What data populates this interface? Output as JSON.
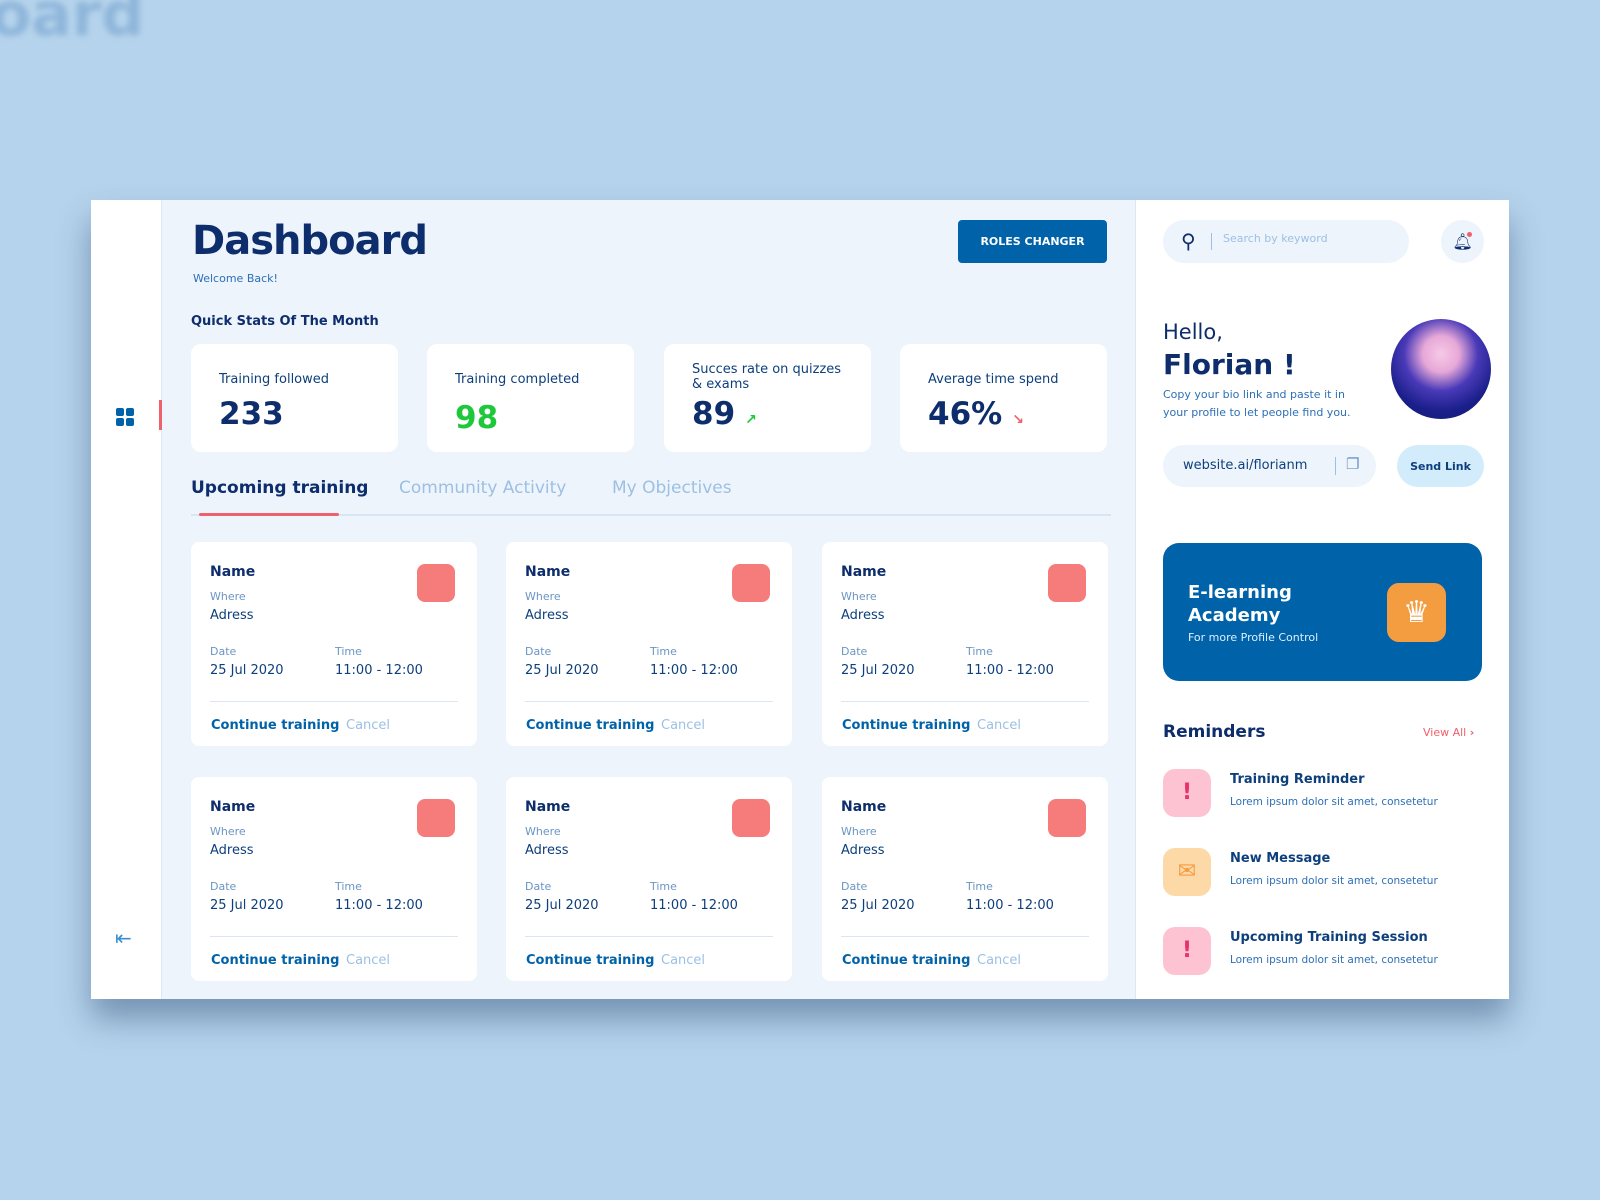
{
  "background": {
    "ghost_title": "oard"
  },
  "header": {
    "title": "Dashboard",
    "subtitle": "Welcome Back!",
    "roles_button": "ROLES CHANGER"
  },
  "quick_stats": {
    "label": "Quick Stats Of The Month",
    "items": [
      {
        "label": "Training followed",
        "value": "233",
        "trend": ""
      },
      {
        "label": "Training completed",
        "value": "98",
        "trend": ""
      },
      {
        "label": "Succes rate on quizzes & exams",
        "value": "89",
        "trend": "up"
      },
      {
        "label": "Average time spend",
        "value": "46%",
        "trend": "down"
      }
    ]
  },
  "tabs": [
    {
      "label": "Upcoming training",
      "active": true
    },
    {
      "label": "Community Activity"
    },
    {
      "label": "My Objectives"
    }
  ],
  "training_cards": [
    {
      "name": "Name",
      "where_label": "Where",
      "where": "Adress",
      "date_label": "Date",
      "date": "25 Jul 2020",
      "time_label": "Time",
      "time": "11:00 - 12:00",
      "continue": "Continue training",
      "cancel": "Cancel"
    },
    {
      "name": "Name",
      "where_label": "Where",
      "where": "Adress",
      "date_label": "Date",
      "date": "25 Jul 2020",
      "time_label": "Time",
      "time": "11:00 - 12:00",
      "continue": "Continue training",
      "cancel": "Cancel"
    },
    {
      "name": "Name",
      "where_label": "Where",
      "where": "Adress",
      "date_label": "Date",
      "date": "25 Jul 2020",
      "time_label": "Time",
      "time": "11:00 - 12:00",
      "continue": "Continue training",
      "cancel": "Cancel"
    },
    {
      "name": "Name",
      "where_label": "Where",
      "where": "Adress",
      "date_label": "Date",
      "date": "25 Jul 2020",
      "time_label": "Time",
      "time": "11:00 - 12:00",
      "continue": "Continue training",
      "cancel": "Cancel"
    },
    {
      "name": "Name",
      "where_label": "Where",
      "where": "Adress",
      "date_label": "Date",
      "date": "25 Jul 2020",
      "time_label": "Time",
      "time": "11:00 - 12:00",
      "continue": "Continue training",
      "cancel": "Cancel"
    },
    {
      "name": "Name",
      "where_label": "Where",
      "where": "Adress",
      "date_label": "Date",
      "date": "25 Jul 2020",
      "time_label": "Time",
      "time": "11:00 - 12:00",
      "continue": "Continue training",
      "cancel": "Cancel"
    }
  ],
  "right": {
    "search_placeholder": "Search by keyword",
    "hello": "Hello,",
    "name": "Florian !",
    "bio": "Copy your bio link and paste it in your profile to let people find you.",
    "link": "website.ai/florianm",
    "send_link": "Send Link",
    "academy": {
      "title": "E-learning Academy",
      "subtitle": "For more Profile Control"
    },
    "reminders_title": "Reminders",
    "view_all": "View All",
    "reminders": [
      {
        "title": "Training Reminder",
        "desc": "Lorem ipsum dolor sit amet, consetetur",
        "icon": "alert-icon"
      },
      {
        "title": "New Message",
        "desc": "Lorem ipsum dolor sit amet, consetetur",
        "icon": "mail-icon"
      },
      {
        "title": "Upcoming Training Session",
        "desc": "Lorem ipsum dolor sit amet, consetetur",
        "icon": "alert-icon"
      }
    ]
  },
  "colors": {
    "primary": "#0062a8",
    "navy": "#0d2d6c",
    "accent_red": "#f0606c",
    "green": "#1dc93a",
    "orange": "#f39c40"
  }
}
